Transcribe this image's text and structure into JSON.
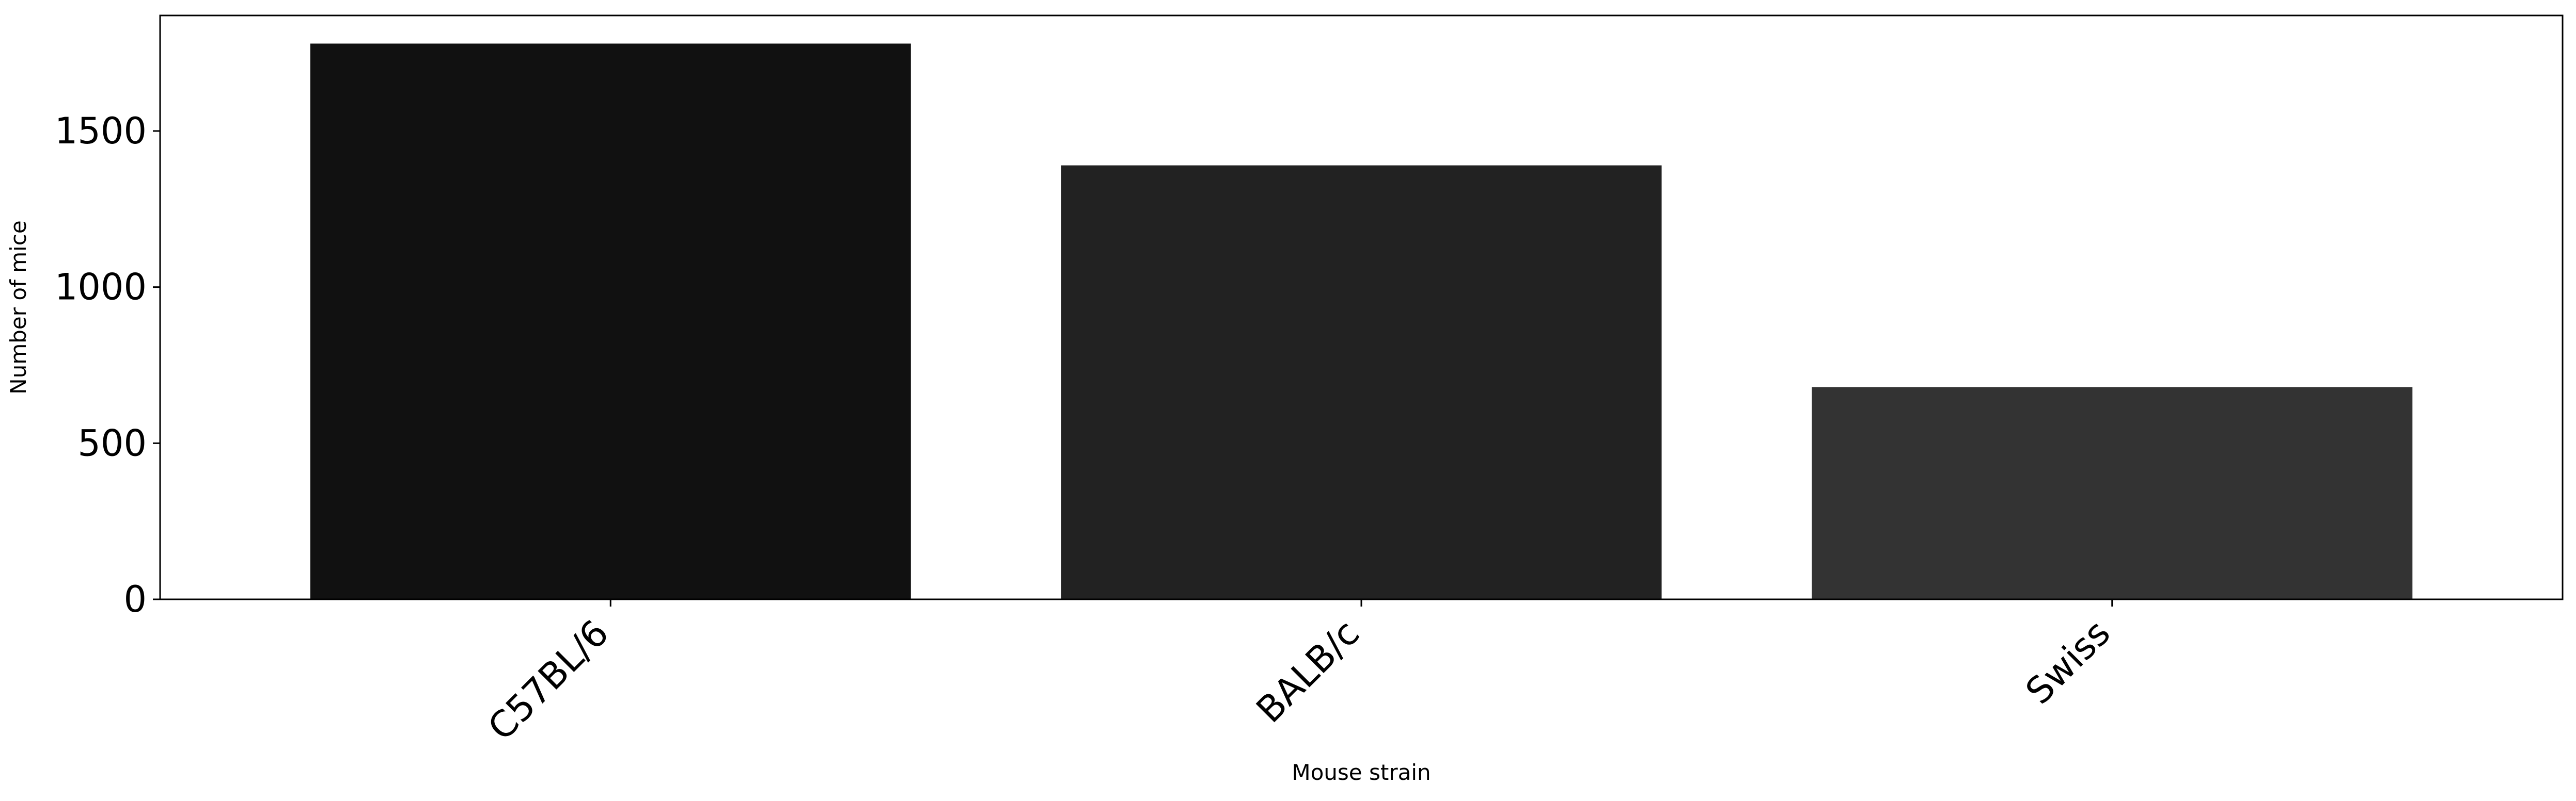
{
  "chart_data": {
    "type": "bar",
    "categories": [
      "C57BL/6",
      "BALB/c",
      "Swiss"
    ],
    "values": [
      1780,
      1390,
      680
    ],
    "bar_colors": [
      "#111111",
      "#222222",
      "#333333"
    ],
    "xlabel": "Mouse strain",
    "ylabel": "Number of mice",
    "ylim": [
      0,
      1870
    ],
    "yticks": [
      0,
      500,
      1000,
      1500
    ],
    "ytick_labels": [
      "0",
      "500",
      "1000",
      "1500"
    ],
    "grid": false,
    "legend": "none"
  }
}
